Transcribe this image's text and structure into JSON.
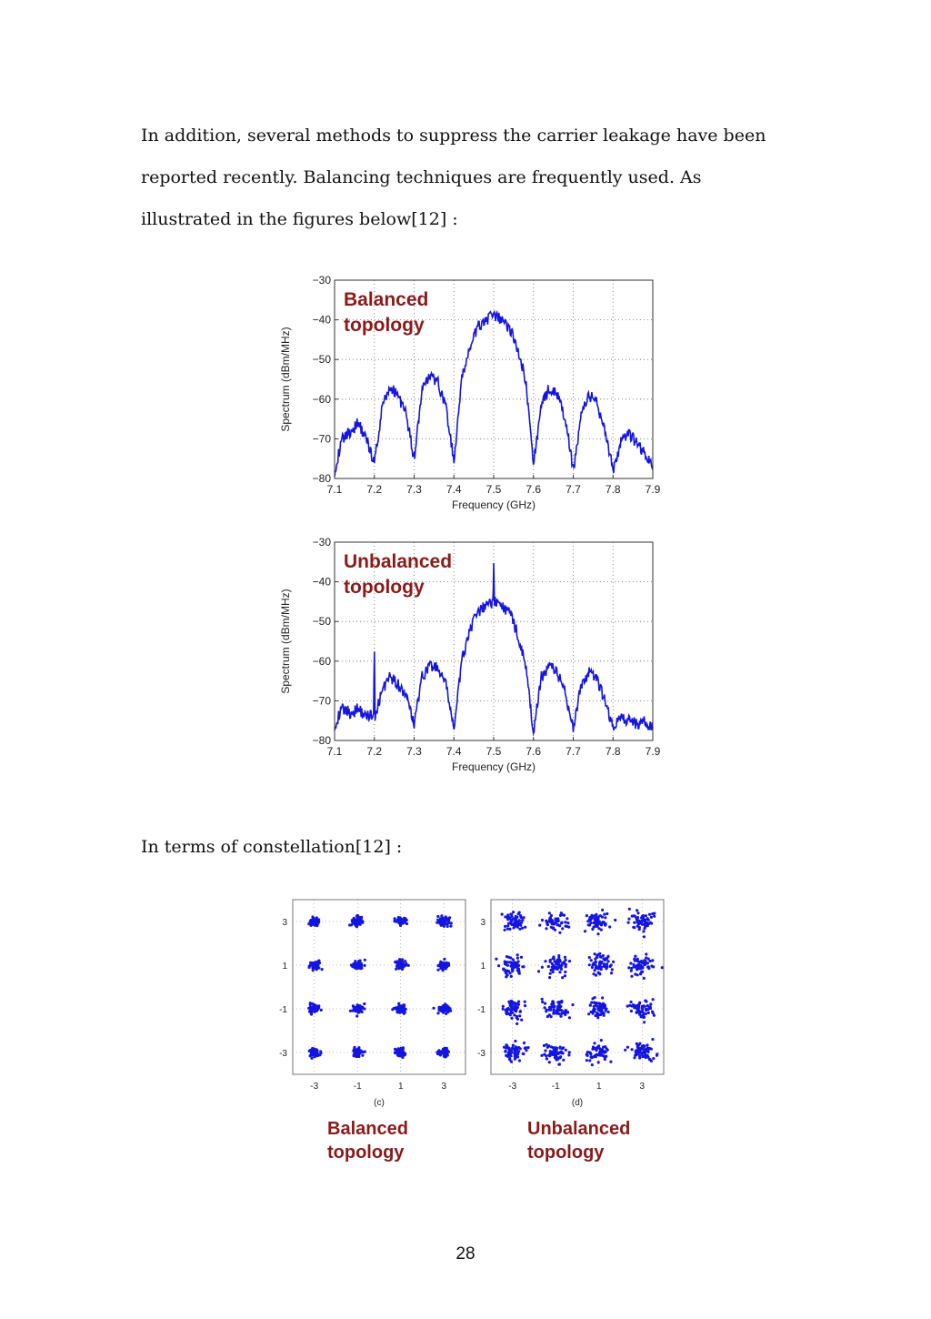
{
  "paragraphs": {
    "intro": "In addition, several methods to suppress the carrier leakage have been reported recently. Balancing techniques are frequently used. As illustrated in the figures below[12] :",
    "constellation": "In terms of constellation[12] :"
  },
  "page_number": "28",
  "chart_data": [
    {
      "type": "line",
      "annotation": "Balanced\ntopology",
      "xlabel": "Frequency (GHz)",
      "ylabel": "Spectrum (dBm/MHz)",
      "xlim": [
        7.1,
        7.9
      ],
      "ylim": [
        -80,
        -30
      ],
      "xticks": [
        "7.1",
        "7.2",
        "7.3",
        "7.4",
        "7.5",
        "7.6",
        "7.7",
        "7.8",
        "7.9"
      ],
      "yticks": [
        "-30",
        "-40",
        "-50",
        "-60",
        "-70",
        "-80"
      ],
      "grid": true,
      "x": [
        7.1,
        7.12,
        7.14,
        7.16,
        7.18,
        7.2,
        7.22,
        7.24,
        7.26,
        7.28,
        7.3,
        7.32,
        7.34,
        7.36,
        7.38,
        7.4,
        7.42,
        7.44,
        7.46,
        7.48,
        7.5,
        7.52,
        7.54,
        7.56,
        7.58,
        7.6,
        7.62,
        7.64,
        7.66,
        7.68,
        7.7,
        7.72,
        7.74,
        7.76,
        7.78,
        7.8,
        7.82,
        7.84,
        7.86,
        7.88,
        7.9
      ],
      "y": [
        -78,
        -70,
        -68,
        -66,
        -70,
        -76,
        -62,
        -57,
        -59,
        -64,
        -75,
        -58,
        -54,
        -56,
        -62,
        -76,
        -55,
        -47,
        -42,
        -40,
        -39,
        -40,
        -42,
        -47,
        -55,
        -76,
        -62,
        -57,
        -59,
        -65,
        -78,
        -64,
        -59,
        -61,
        -68,
        -78,
        -71,
        -69,
        -71,
        -74,
        -77
      ]
    },
    {
      "type": "line",
      "annotation": "Unbalanced\ntopology",
      "xlabel": "Frequency (GHz)",
      "ylabel": "Spectrum (dBm/MHz)",
      "xlim": [
        7.1,
        7.9
      ],
      "ylim": [
        -80,
        -30
      ],
      "xticks": [
        "7.1",
        "7.2",
        "7.3",
        "7.4",
        "7.5",
        "7.6",
        "7.7",
        "7.8",
        "7.9"
      ],
      "yticks": [
        "-30",
        "-40",
        "-50",
        "-60",
        "-70",
        "-80"
      ],
      "grid": true,
      "x": [
        7.1,
        7.12,
        7.14,
        7.16,
        7.18,
        7.198,
        7.2,
        7.202,
        7.22,
        7.24,
        7.26,
        7.28,
        7.3,
        7.32,
        7.34,
        7.36,
        7.38,
        7.4,
        7.42,
        7.44,
        7.46,
        7.48,
        7.498,
        7.5,
        7.502,
        7.52,
        7.54,
        7.56,
        7.58,
        7.6,
        7.62,
        7.64,
        7.66,
        7.68,
        7.7,
        7.72,
        7.74,
        7.76,
        7.78,
        7.8,
        7.82,
        7.84,
        7.86,
        7.88,
        7.9
      ],
      "y": [
        -76,
        -72,
        -73,
        -72,
        -74,
        -73,
        -58,
        -74,
        -67,
        -64,
        -66,
        -69,
        -76,
        -64,
        -61,
        -62,
        -66,
        -77,
        -60,
        -52,
        -48,
        -46,
        -45,
        -35,
        -45,
        -46,
        -48,
        -53,
        -61,
        -78,
        -64,
        -61,
        -63,
        -68,
        -77,
        -66,
        -63,
        -65,
        -70,
        -77,
        -74,
        -75,
        -76,
        -75,
        -77
      ]
    },
    {
      "type": "scatter",
      "caption": "(c)",
      "label": "Balanced\ntopology",
      "xticks": [
        "-3",
        "-1",
        "1",
        "3"
      ],
      "yticks": [
        "3",
        "1",
        "-1",
        "-3"
      ],
      "points": [
        -3,
        -1,
        1,
        3
      ],
      "spread": 0.12,
      "grid": true
    },
    {
      "type": "scatter",
      "caption": "(d)",
      "label": "Unbalanced\ntopology",
      "xticks": [
        "-3",
        "-1",
        "1",
        "3"
      ],
      "yticks": [
        "3",
        "1",
        "-1",
        "-3"
      ],
      "points": [
        -3,
        -1,
        1,
        3
      ],
      "spread": 0.28,
      "grid": true
    }
  ],
  "colors": {
    "trace": "#1515e0",
    "annotation": "#8b1a1a"
  }
}
